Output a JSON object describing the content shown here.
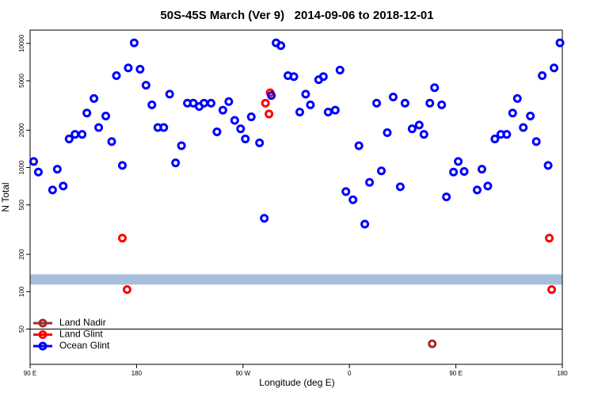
{
  "chart_data": {
    "type": "scatter",
    "title": "50S-45S March (Ver 9)   2014-09-06 to 2018-12-01",
    "xlabel": "Longitude (deg E)",
    "ylabel": "N Total",
    "xlim": [
      90,
      540
    ],
    "xticks": [
      {
        "value": 90,
        "label": "90 E"
      },
      180,
      {
        "value": 270,
        "label": "90 W"
      },
      {
        "value": 360,
        "label": "0"
      },
      {
        "value": 450,
        "label": "90 E"
      },
      {
        "value": 540,
        "label": "180"
      }
    ],
    "ylim": [
      26,
      12800
    ],
    "yticks": [
      50,
      100,
      200,
      500,
      1000,
      2000,
      5000,
      10000
    ],
    "log_y": true,
    "hline": 50,
    "band": {
      "range": [
        114,
        138
      ],
      "color": "#a7bfdc"
    },
    "legend": "lower left",
    "series": [
      {
        "name": "Land Nadir",
        "color": "#a52a2a",
        "x": [
          430
        ],
        "values": [
          38
        ]
      },
      {
        "name": "Land Glint",
        "color": "#ff0000",
        "x": [
          168,
          172,
          289,
          292,
          293,
          529,
          531
        ],
        "values": [
          270,
          104,
          3300,
          2700,
          4000,
          270,
          104
        ]
      },
      {
        "name": "Ocean Glint",
        "color": "#0000ff",
        "x": [
          93,
          97,
          109,
          113,
          118,
          123,
          128,
          134,
          138,
          144,
          148,
          154,
          159,
          163,
          168,
          173,
          178,
          183,
          188,
          193,
          198,
          203,
          208,
          213,
          218,
          223,
          228,
          233,
          237,
          243,
          248,
          253,
          258,
          263,
          268,
          272,
          277,
          284,
          288,
          294,
          298,
          302,
          308,
          313,
          318,
          323,
          327,
          334,
          338,
          342,
          348,
          352,
          357,
          363,
          368,
          373,
          377,
          387,
          383,
          392,
          397,
          403,
          407,
          413,
          419,
          423,
          428,
          432,
          438,
          442,
          448,
          452,
          457,
          468,
          472,
          477,
          483,
          488,
          493,
          498,
          502,
          507,
          513,
          518,
          523,
          528,
          533,
          538
        ],
        "values": [
          1120,
          920,
          660,
          970,
          710,
          1700,
          1850,
          1850,
          2750,
          3600,
          2100,
          2600,
          1620,
          5500,
          1040,
          6350,
          10100,
          6200,
          4600,
          3200,
          2100,
          2100,
          3900,
          1090,
          1500,
          3300,
          3300,
          3100,
          3300,
          3300,
          1940,
          2900,
          3400,
          2400,
          2050,
          1700,
          2560,
          1580,
          390,
          3800,
          10100,
          9600,
          5500,
          5400,
          2800,
          3900,
          3200,
          5100,
          5400,
          2800,
          2900,
          6100,
          640,
          550,
          1500,
          350,
          760,
          940,
          3300,
          1910,
          3700,
          700,
          3300,
          2050,
          2200,
          1850,
          3300,
          4400,
          3200,
          580,
          920,
          1120,
          930,
          660,
          970,
          710,
          1700,
          1850,
          1850,
          2750,
          3600,
          2100,
          2600,
          1620,
          5500,
          1040,
          6350,
          10100
        ]
      }
    ]
  }
}
